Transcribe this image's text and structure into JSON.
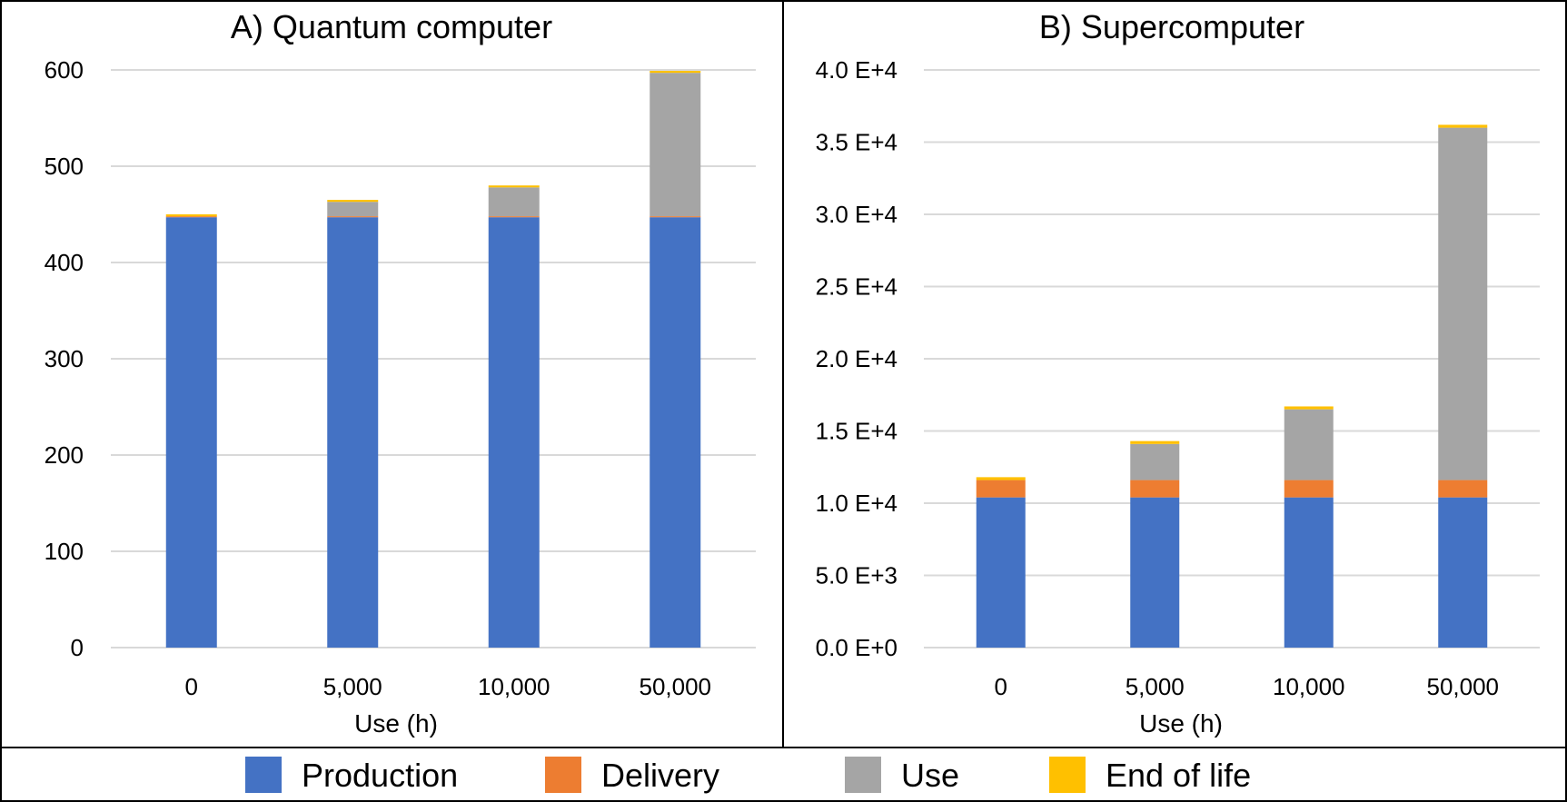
{
  "chart_data": [
    {
      "type": "bar",
      "stacked": true,
      "title": "A) Quantum computer",
      "xlabel": "Use (h)",
      "ylabel": "",
      "ylim": [
        0,
        600
      ],
      "yticks": [
        0,
        100,
        200,
        300,
        400,
        500,
        600
      ],
      "ytick_labels": [
        "0",
        "100",
        "200",
        "300",
        "400",
        "500",
        "600"
      ],
      "grid": true,
      "categories": [
        "0",
        "5,000",
        "10,000",
        "50,000"
      ],
      "series": [
        {
          "name": "Production",
          "color": "#4472C4",
          "values": [
            447,
            447,
            447,
            447
          ]
        },
        {
          "name": "Delivery",
          "color": "#ED7D31",
          "values": [
            1,
            1,
            1,
            1
          ]
        },
        {
          "name": "Use",
          "color": "#A5A5A5",
          "values": [
            0,
            15,
            30,
            149
          ]
        },
        {
          "name": "End of life",
          "color": "#FFC000",
          "values": [
            2,
            2,
            2,
            2
          ]
        }
      ]
    },
    {
      "type": "bar",
      "stacked": true,
      "title": "B) Supercomputer",
      "xlabel": "Use (h)",
      "ylabel": "",
      "ylim": [
        0,
        40000
      ],
      "yticks": [
        0,
        5000,
        10000,
        15000,
        20000,
        25000,
        30000,
        35000,
        40000
      ],
      "ytick_labels": [
        "0.0 E+0",
        "5.0 E+3",
        "1.0 E+4",
        "1.5 E+4",
        "2.0 E+4",
        "2.5 E+4",
        "3.0 E+4",
        "3.5 E+4",
        "4.0 E+4"
      ],
      "grid": true,
      "categories": [
        "0",
        "5,000",
        "10,000",
        "50,000"
      ],
      "series": [
        {
          "name": "Production",
          "color": "#4472C4",
          "values": [
            10400,
            10400,
            10400,
            10400
          ]
        },
        {
          "name": "Delivery",
          "color": "#ED7D31",
          "values": [
            1200,
            1200,
            1200,
            1200
          ]
        },
        {
          "name": "Use",
          "color": "#A5A5A5",
          "values": [
            0,
            2500,
            4900,
            24400
          ]
        },
        {
          "name": "End of life",
          "color": "#FFC000",
          "values": [
            200,
            200,
            200,
            200
          ]
        }
      ]
    }
  ],
  "legend": {
    "position": "bottom",
    "items": [
      {
        "label": "Production",
        "color": "#4472C4"
      },
      {
        "label": "Delivery",
        "color": "#ED7D31"
      },
      {
        "label": "Use",
        "color": "#A5A5A5"
      },
      {
        "label": "End of life",
        "color": "#FFC000"
      }
    ]
  }
}
